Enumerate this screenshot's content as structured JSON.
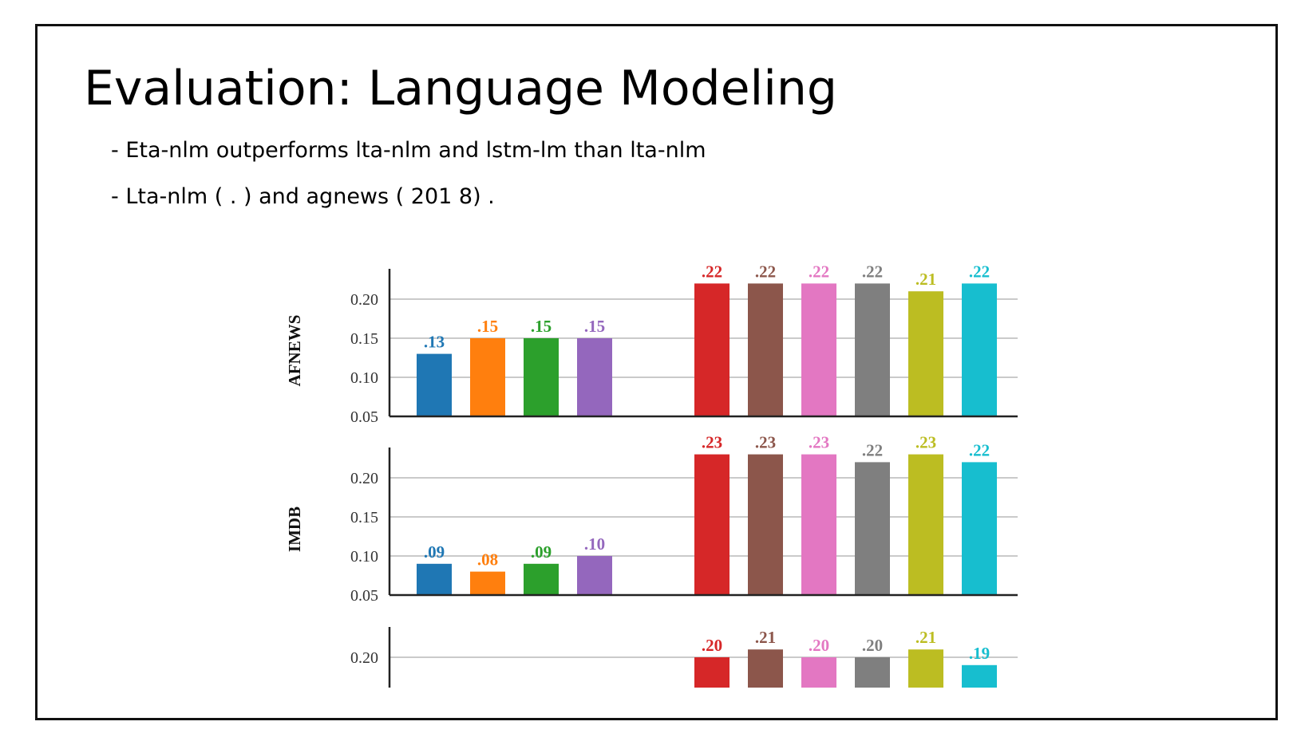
{
  "slide": {
    "title": "Evaluation: Language Modeling",
    "bullets": [
      "- Eta-nlm outperforms lta-nlm and lstm-lm than lta-nlm",
      "- Lta-nlm ( . ) and agnews ( 201 8) ."
    ]
  },
  "chart_data": {
    "type": "bar",
    "colors": [
      "#1f77b4",
      "#ff7f0e",
      "#2ca02c",
      "#9467bd",
      "#d62728",
      "#8c564b",
      "#e377c2",
      "#7f7f7f",
      "#bcbd22",
      "#17becf"
    ],
    "panels": [
      {
        "ylabel": "AFNEWS",
        "yticks": [
          "0.05",
          "0.10",
          "0.15",
          "0.20"
        ],
        "ylim": [
          0.05,
          0.235
        ],
        "grid": true,
        "values": [
          0.13,
          0.15,
          0.15,
          0.15,
          0.22,
          0.22,
          0.22,
          0.22,
          0.21,
          0.22
        ],
        "labels": [
          ".13",
          ".15",
          ".15",
          ".15",
          ".22",
          ".22",
          ".22",
          ".22",
          ".21",
          ".22"
        ]
      },
      {
        "ylabel": "IMDB",
        "yticks": [
          "0.05",
          "0.10",
          "0.15",
          "0.20"
        ],
        "ylim": [
          0.05,
          0.235
        ],
        "grid": true,
        "values": [
          0.09,
          0.08,
          0.09,
          0.1,
          0.23,
          0.23,
          0.23,
          0.22,
          0.23,
          0.22
        ],
        "labels": [
          ".09",
          ".08",
          ".09",
          ".10",
          ".23",
          ".23",
          ".23",
          ".22",
          ".23",
          ".22"
        ]
      },
      {
        "ylabel": "",
        "yticks": [
          "0.20"
        ],
        "ylim": [
          0.05,
          0.235
        ],
        "grid": true,
        "values": [
          null,
          null,
          null,
          null,
          0.2,
          0.21,
          0.2,
          0.2,
          0.21,
          0.19
        ],
        "labels": [
          "",
          "",
          "",
          "",
          ".20",
          ".21",
          ".20",
          ".20",
          ".21",
          ".19"
        ]
      }
    ]
  }
}
